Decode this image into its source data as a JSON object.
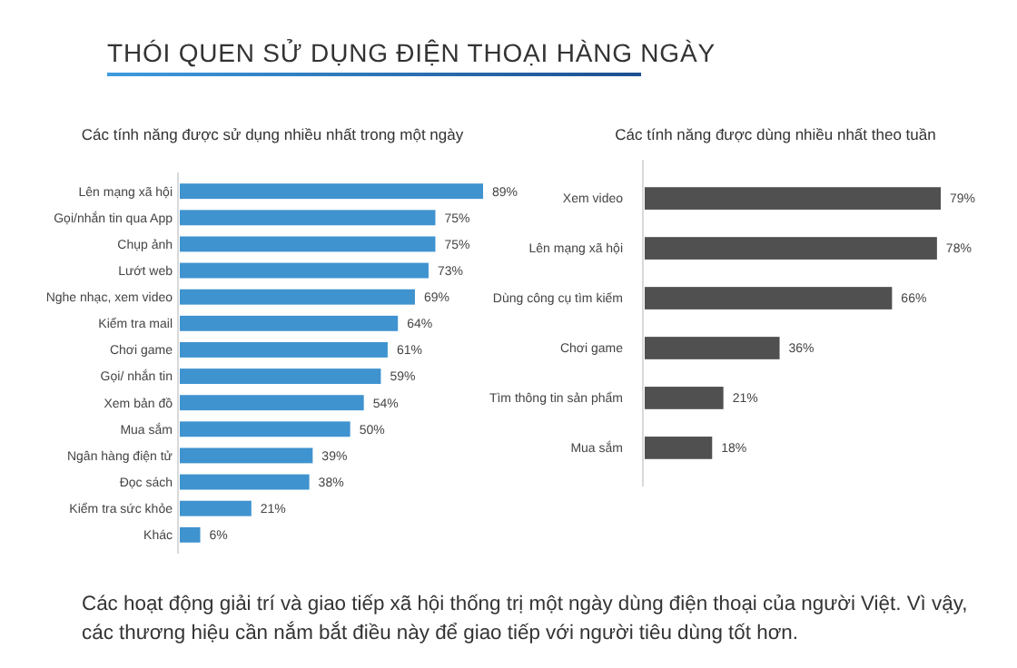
{
  "chart_data": [
    {
      "type": "bar",
      "orientation": "horizontal",
      "title": "THÓI QUEN SỬ DỤNG ĐIỆN THOẠI HÀNG NGÀY",
      "subtitle": "Các tính năng được sử dụng nhiều nhất trong một ngày",
      "categories": [
        "Lên mạng xã hội",
        "Gọi/nhắn tin qua App",
        "Chụp ảnh",
        "Lướt web",
        "Nghe nhạc, xem video",
        "Kiểm tra mail",
        "Chơi game",
        "Gọi/ nhắn tin",
        "Xem bản đồ",
        "Mua sắm",
        "Ngân hàng điện tử",
        "Đọc sách",
        "Kiểm tra sức khỏe",
        "Khác"
      ],
      "values": [
        89,
        75,
        75,
        73,
        69,
        64,
        61,
        59,
        54,
        50,
        39,
        38,
        21,
        6
      ],
      "value_labels": [
        "89%",
        "75%",
        "75%",
        "73%",
        "69%",
        "64%",
        "61%",
        "59%",
        "54%",
        "50%",
        "39%",
        "38%",
        "21%",
        "6%"
      ],
      "color": "#3f93cf"
    },
    {
      "type": "bar",
      "orientation": "horizontal",
      "subtitle": "Các tính năng được dùng nhiều nhất theo tuần",
      "categories": [
        "Xem video",
        "Lên mạng xã hội",
        "Dùng công cụ tìm kiếm",
        "Chơi game",
        "Tìm thông tin sản phẩm",
        "Mua sắm"
      ],
      "values": [
        79,
        78,
        66,
        36,
        21,
        18
      ],
      "value_labels": [
        "79%",
        "78%",
        "66%",
        "36%",
        "21%",
        "18%"
      ],
      "color": "#505050",
      "annotations": [
        "Các hoạt động giải trí và giao tiếp xã hội thống trị một ngày dùng điện thoại của người Việt. Vì vậy,",
        "các thương hiệu cần nắm bắt điều này để giao tiếp với người tiêu dùng tốt hơn."
      ]
    }
  ]
}
